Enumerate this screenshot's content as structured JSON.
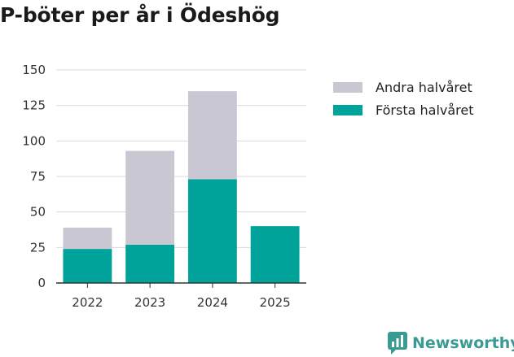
{
  "title": "P-böter per år i Ödeshög",
  "brand": "Newsworthy",
  "colors": {
    "second_half": "#c8c7d2",
    "first_half": "#00a399",
    "brand": "#3a9a94"
  },
  "chart_data": {
    "type": "bar",
    "stacked": true,
    "title": "P-böter per år i Ödeshög",
    "categories": [
      "2022",
      "2023",
      "2024",
      "2025"
    ],
    "series": [
      {
        "name": "Första halvåret",
        "values": [
          24,
          27,
          73,
          40
        ]
      },
      {
        "name": "Andra halvåret",
        "values": [
          15,
          66,
          62,
          0
        ]
      }
    ],
    "yticks": [
      "0",
      "25",
      "50",
      "75",
      "100",
      "125",
      "150"
    ],
    "ylim": [
      0,
      150
    ],
    "xlabel": "",
    "ylabel": "",
    "grid": true,
    "legend_position": "right"
  }
}
